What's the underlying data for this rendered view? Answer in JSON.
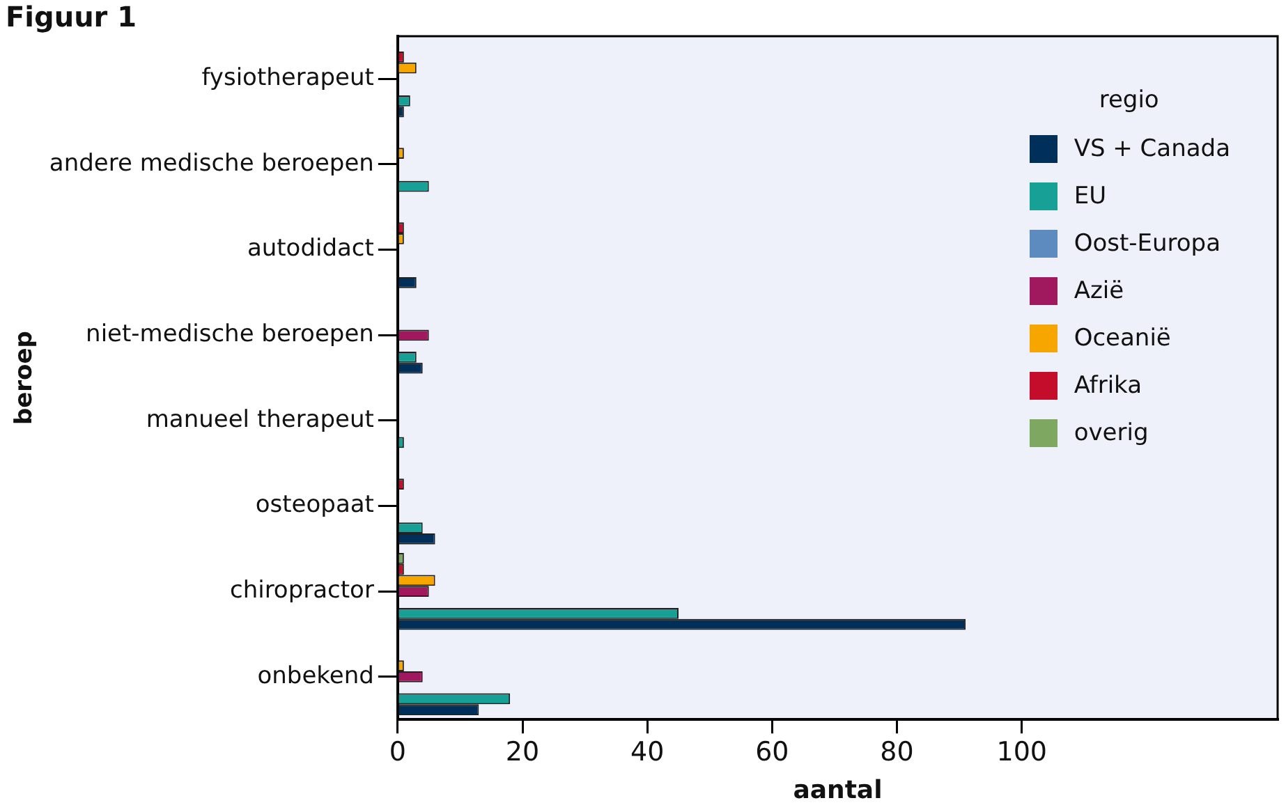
{
  "chart_data": {
    "type": "bar",
    "orientation": "horizontal",
    "title": "Figuur 1",
    "xlabel": "aantal",
    "ylabel": "beroep",
    "legend_title": "regio",
    "legend": "right",
    "categories": [
      "fysiotherapeut",
      "andere medische beroepen",
      "autodidact",
      "niet-medische beroepen",
      "manueel therapeut",
      "osteopaat",
      "chiropractor",
      "onbekend"
    ],
    "series": [
      {
        "name": "VS + Canada",
        "color": "#002f5a",
        "values": [
          1,
          null,
          3,
          4,
          null,
          6,
          91,
          13
        ]
      },
      {
        "name": "EU",
        "color": "#16a096",
        "values": [
          2,
          5,
          null,
          3,
          1,
          4,
          45,
          18
        ]
      },
      {
        "name": "Oost-Europa",
        "color": "#5e8bbf",
        "values": [
          null,
          null,
          null,
          null,
          null,
          null,
          null,
          null
        ]
      },
      {
        "name": "Azië",
        "color": "#a0195f",
        "values": [
          null,
          null,
          null,
          5,
          null,
          null,
          5,
          4
        ]
      },
      {
        "name": "Oceanië",
        "color": "#f7a600",
        "values": [
          3,
          1,
          1,
          null,
          null,
          null,
          6,
          1
        ]
      },
      {
        "name": "Afrika",
        "color": "#c40d2a",
        "values": [
          1,
          null,
          1,
          null,
          null,
          1,
          1,
          null
        ]
      },
      {
        "name": "overig",
        "color": "#7ea862",
        "values": [
          null,
          null,
          null,
          null,
          null,
          null,
          1,
          null
        ]
      }
    ],
    "xlim": [
      0,
      141
    ],
    "xticks": [
      0,
      20,
      40,
      60,
      80,
      100
    ],
    "grid": false
  }
}
